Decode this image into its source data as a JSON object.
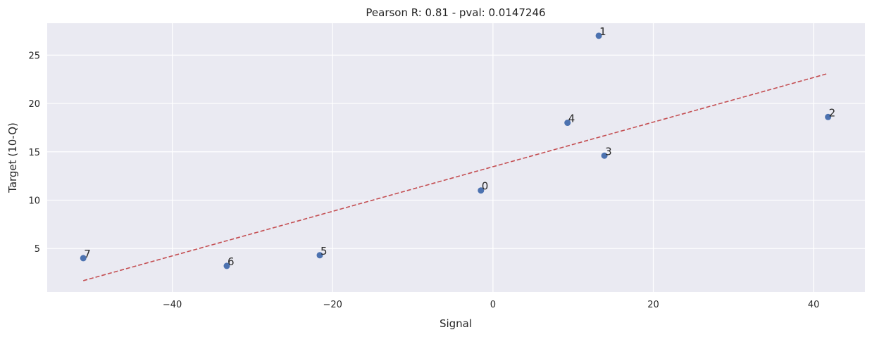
{
  "chart_data": {
    "type": "scatter",
    "title": "Pearson R: 0.81 - pval: 0.0147246",
    "xlabel": "Signal",
    "ylabel": "Target (10-Q)",
    "xlim": [
      -55.6,
      46.4
    ],
    "ylim": [
      0.5,
      28.3
    ],
    "xticks": [
      -40,
      -20,
      0,
      20,
      40
    ],
    "xtick_labels": [
      "−40",
      "−20",
      "0",
      "20",
      "40"
    ],
    "yticks": [
      5,
      10,
      15,
      20,
      25
    ],
    "ytick_labels": [
      "5",
      "10",
      "15",
      "20",
      "25"
    ],
    "grid": true,
    "points": [
      {
        "label": "0",
        "x": -1.5,
        "y": 11.0
      },
      {
        "label": "1",
        "x": 13.2,
        "y": 27.0
      },
      {
        "label": "2",
        "x": 41.8,
        "y": 18.6
      },
      {
        "label": "3",
        "x": 13.9,
        "y": 14.6
      },
      {
        "label": "4",
        "x": 9.3,
        "y": 18.0
      },
      {
        "label": "5",
        "x": -21.6,
        "y": 4.3
      },
      {
        "label": "6",
        "x": -33.2,
        "y": 3.2
      },
      {
        "label": "7",
        "x": -51.1,
        "y": 4.0
      }
    ],
    "fit_line": {
      "x": [
        -51.1,
        41.8
      ],
      "y": [
        1.67,
        23.1
      ],
      "style": "dashed"
    },
    "colors": {
      "points": "#4c72b0",
      "fit_line": "#c44e52",
      "background": "#eaeaf2",
      "grid": "#ffffff"
    }
  }
}
